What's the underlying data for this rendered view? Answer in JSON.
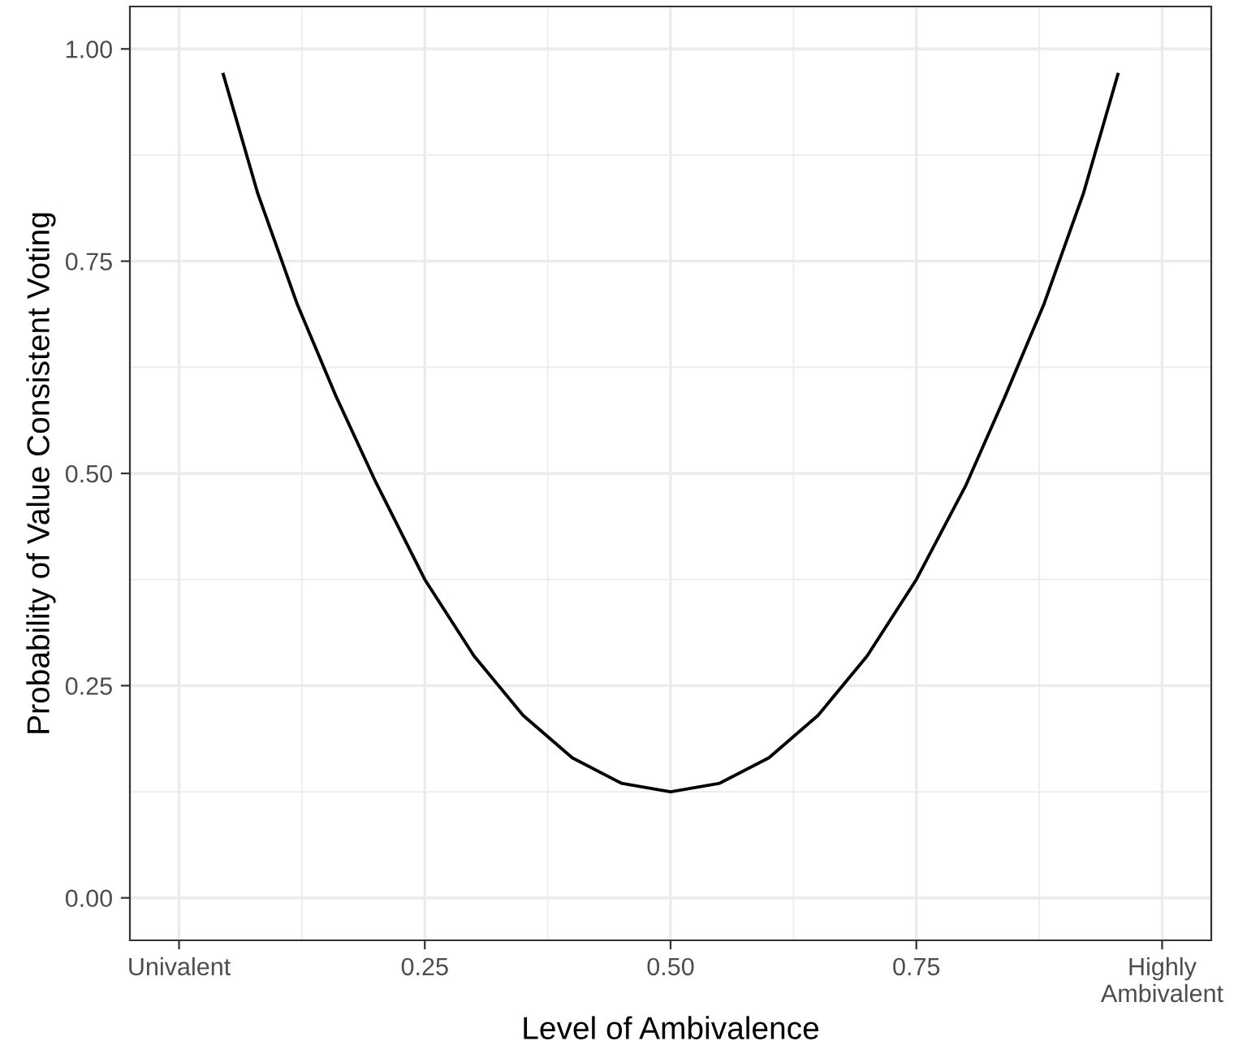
{
  "chart_data": {
    "type": "line",
    "xlabel": "Level of Ambivalence",
    "ylabel": "Probability of Value Consistent Voting",
    "x": [
      0.045,
      0.08,
      0.12,
      0.16,
      0.2,
      0.25,
      0.3,
      0.35,
      0.4,
      0.45,
      0.5,
      0.55,
      0.6,
      0.65,
      0.7,
      0.75,
      0.8,
      0.84,
      0.88,
      0.92,
      0.955
    ],
    "series": [
      {
        "color": "#000000",
        "values": [
          0.97,
          0.83,
          0.7,
          0.59,
          0.49,
          0.375,
          0.285,
          0.215,
          0.165,
          0.135,
          0.125,
          0.135,
          0.165,
          0.215,
          0.285,
          0.375,
          0.485,
          0.59,
          0.7,
          0.83,
          0.97
        ]
      }
    ],
    "xlim": [
      -0.05,
      1.05
    ],
    "ylim": [
      -0.05,
      1.05
    ],
    "xticks": [
      {
        "value": 0,
        "label": "Univalent"
      },
      {
        "value": 0.25,
        "label": "0.25"
      },
      {
        "value": 0.5,
        "label": "0.50"
      },
      {
        "value": 0.75,
        "label": "0.75"
      },
      {
        "value": 1,
        "label": "Highly\nAmbivalent"
      }
    ],
    "yticks": [
      {
        "value": 0,
        "label": "0.00"
      },
      {
        "value": 0.25,
        "label": "0.25"
      },
      {
        "value": 0.5,
        "label": "0.50"
      },
      {
        "value": 0.75,
        "label": "0.75"
      },
      {
        "value": 1,
        "label": "1.00"
      }
    ],
    "grid": true,
    "marker": "none",
    "line_style": "solid"
  }
}
